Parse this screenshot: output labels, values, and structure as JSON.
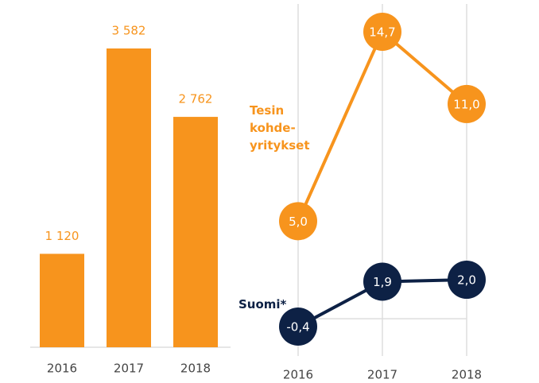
{
  "chart_data": [
    {
      "type": "bar",
      "categories": [
        "2016",
        "2017",
        "2018"
      ],
      "values": [
        1120,
        3582,
        2762
      ],
      "value_labels": [
        "1 120",
        "3 582",
        "2 762"
      ],
      "color": "#f7941d"
    },
    {
      "type": "line",
      "categories": [
        "2016",
        "2017",
        "2018"
      ],
      "grid": true,
      "series": [
        {
          "name": "Tesin kohde-yritykset",
          "color": "#f7941d",
          "values": [
            5.0,
            14.7,
            11.0
          ],
          "value_labels": [
            "5,0",
            "14,7",
            "11,0"
          ]
        },
        {
          "name": "Suomi*",
          "color": "#0d2145",
          "values": [
            -0.4,
            1.9,
            2.0
          ],
          "value_labels": [
            "-0,4",
            "1,9",
            "2,0"
          ]
        }
      ]
    }
  ]
}
